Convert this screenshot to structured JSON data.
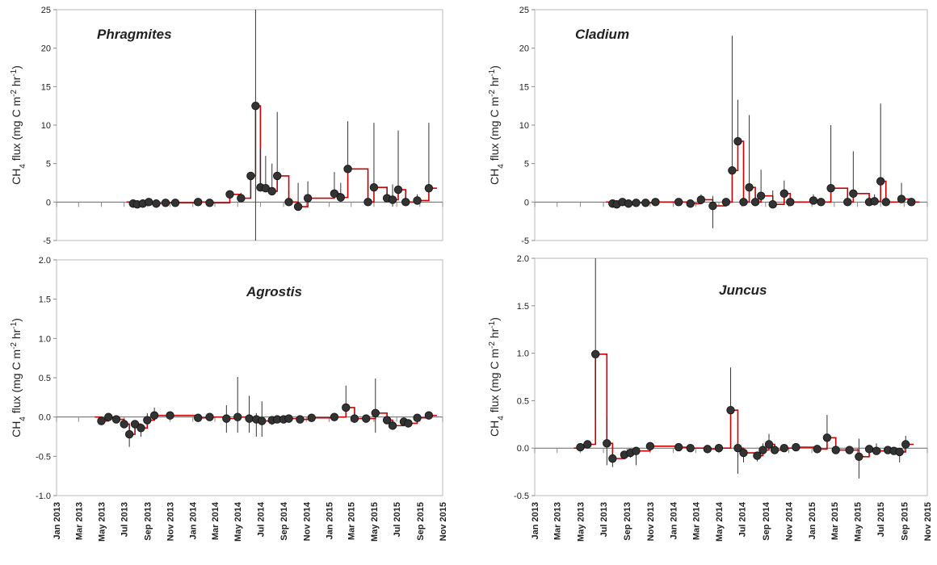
{
  "figure": {
    "x_axis_dates": [
      "Jan 2013",
      "Mar 2013",
      "May 2013",
      "Jul 2013",
      "Sep 2013",
      "Nov 2013",
      "Jan 2014",
      "Mar 2014",
      "May 2014",
      "Jul 2014",
      "Sep 2014",
      "Nov 2014",
      "Jan 2015",
      "Mar 2015",
      "May 2015",
      "Jul 2015",
      "Sep 2015",
      "Nov 2015"
    ]
  },
  "chart_data": [
    {
      "type": "line",
      "title": "Phragmites",
      "ylabel": "CH4 flux (mg C m-2 hr-1)",
      "ylabel_parts": {
        "a": "CH",
        "a_sub": "4",
        "b": " flux (mg C m",
        "b_sup": "-2",
        "c": " hr",
        "c_sup": "-1",
        "d": ")"
      },
      "ylim": [
        -5,
        25
      ],
      "yticks": [
        "-5",
        "0",
        "5",
        "10",
        "15",
        "20",
        "25"
      ],
      "ytick_values": [
        -5,
        0,
        5,
        10,
        15,
        20,
        25
      ],
      "x": [
        "2013-07-25",
        "2013-08-05",
        "2013-08-20",
        "2013-09-05",
        "2013-09-25",
        "2013-10-20",
        "2013-11-15",
        "2014-01-15",
        "2014-02-15",
        "2014-04-10",
        "2014-05-10",
        "2014-06-05",
        "2014-06-18",
        "2014-07-01",
        "2014-07-15",
        "2014-08-01",
        "2014-08-15",
        "2014-09-15",
        "2014-10-10",
        "2014-11-05",
        "2015-01-15",
        "2015-02-01",
        "2015-02-20",
        "2015-04-15",
        "2015-05-01",
        "2015-06-05",
        "2015-06-20",
        "2015-07-05",
        "2015-07-25",
        "2015-08-25",
        "2015-09-25"
      ],
      "y": [
        -0.2,
        -0.3,
        -0.2,
        0.0,
        -0.2,
        -0.1,
        -0.1,
        0.0,
        -0.1,
        1.0,
        0.5,
        3.4,
        12.5,
        1.9,
        1.8,
        1.4,
        3.4,
        0.0,
        -0.6,
        0.5,
        1.1,
        0.6,
        4.3,
        0.0,
        1.9,
        0.5,
        0.3,
        1.6,
        0.0,
        0.2,
        1.8
      ],
      "error_upper": [
        0,
        0,
        0,
        0,
        0,
        0,
        0,
        0,
        0.4,
        1.5,
        1.2,
        0.5,
        25,
        7,
        6,
        5,
        11.7,
        1.5,
        2.5,
        2.7,
        3.9,
        2.5,
        10.5,
        4,
        10.3,
        2,
        2.3,
        9.3,
        1,
        1,
        10.3
      ],
      "error_lower": [
        0,
        0,
        0,
        0,
        0,
        0,
        0,
        0,
        0,
        0,
        0.4,
        0,
        -5,
        0,
        0,
        0,
        0,
        0,
        -0.8,
        0,
        0,
        0,
        0,
        0,
        0,
        0,
        -0.6,
        0,
        0,
        0,
        0
      ],
      "model_line_color": "#cc0000",
      "marker_color": "#333333"
    },
    {
      "type": "line",
      "title": "Cladium",
      "ylabel": "CH4 flux (mg C m-2 hr-1)",
      "ylabel_parts": {
        "a": "CH",
        "a_sub": "4",
        "b": " flux (mg C m",
        "b_sup": "-2",
        "c": " hr",
        "c_sup": "-1",
        "d": ")"
      },
      "ylim": [
        -5,
        25
      ],
      "yticks": [
        "-5",
        "0",
        "5",
        "10",
        "15",
        "20",
        "25"
      ],
      "ytick_values": [
        -5,
        0,
        5,
        10,
        15,
        20,
        25
      ],
      "x": [
        "2013-07-25",
        "2013-08-05",
        "2013-08-20",
        "2013-09-05",
        "2013-09-25",
        "2013-10-20",
        "2013-11-15",
        "2014-01-15",
        "2014-02-15",
        "2014-03-15",
        "2014-04-15",
        "2014-05-20",
        "2014-06-05",
        "2014-06-20",
        "2014-07-05",
        "2014-07-20",
        "2014-08-05",
        "2014-08-20",
        "2014-09-20",
        "2014-10-20",
        "2014-11-05",
        "2015-01-05",
        "2015-01-25",
        "2015-02-20",
        "2015-04-05",
        "2015-04-20",
        "2015-06-01",
        "2015-06-15",
        "2015-07-01",
        "2015-07-15",
        "2015-08-25",
        "2015-09-20"
      ],
      "y": [
        -0.2,
        -0.3,
        0.0,
        -0.2,
        -0.1,
        -0.1,
        0.0,
        0.0,
        -0.2,
        0.3,
        -0.5,
        0.0,
        4.1,
        7.9,
        0.0,
        1.9,
        0.0,
        0.8,
        -0.3,
        1.1,
        0.0,
        0.2,
        0.0,
        1.8,
        0.0,
        1.1,
        0.0,
        0.1,
        2.7,
        0.0,
        0.4,
        0.0
      ],
      "error_upper": [
        0,
        0,
        0,
        0,
        0,
        0,
        0,
        0,
        0,
        1.0,
        0.8,
        0.5,
        21.6,
        13.3,
        0,
        11.3,
        1.0,
        4.2,
        1.5,
        2.8,
        0,
        1,
        0.5,
        10.0,
        1,
        6.6,
        0.5,
        1.0,
        12.8,
        0.5,
        2.5,
        0.5
      ],
      "error_lower": [
        0,
        0,
        0,
        0,
        0,
        0,
        0,
        0,
        0,
        0,
        -3.4,
        0,
        0,
        0,
        0,
        0,
        0,
        0,
        0,
        0,
        0,
        0,
        0,
        0,
        0,
        0,
        0,
        0,
        0,
        0,
        0,
        0
      ],
      "model_line_color": "#cc0000",
      "marker_color": "#333333"
    },
    {
      "type": "line",
      "title": "Agrostis",
      "ylabel": "CH4 flux (mg C m-2 hr-1)",
      "ylabel_parts": {
        "a": "CH",
        "a_sub": "4",
        "b": " flux (mg C m",
        "b_sup": "-2",
        "c": " hr",
        "c_sup": "-1",
        "d": ")"
      },
      "ylim": [
        -1.0,
        2.0
      ],
      "yticks": [
        "-1.0",
        "-0.5",
        "0.0",
        "0.5",
        "1.0",
        "1.5",
        "2.0"
      ],
      "ytick_values": [
        -1.0,
        -0.5,
        0.0,
        0.5,
        1.0,
        1.5,
        2.0
      ],
      "x": [
        "2013-05-01",
        "2013-05-20",
        "2013-06-10",
        "2013-07-01",
        "2013-07-15",
        "2013-07-30",
        "2013-08-15",
        "2013-09-01",
        "2013-09-20",
        "2013-11-01",
        "2014-01-15",
        "2014-02-15",
        "2014-04-01",
        "2014-05-01",
        "2014-06-01",
        "2014-06-20",
        "2014-07-05",
        "2014-08-01",
        "2014-08-15",
        "2014-09-01",
        "2014-09-15",
        "2014-10-15",
        "2014-11-15",
        "2015-01-15",
        "2015-02-15",
        "2015-03-10",
        "2015-04-10",
        "2015-05-05",
        "2015-06-05",
        "2015-06-20",
        "2015-07-20",
        "2015-08-01",
        "2015-08-25",
        "2015-09-25"
      ],
      "y": [
        -0.05,
        0.0,
        -0.03,
        -0.09,
        -0.22,
        -0.09,
        -0.14,
        -0.04,
        0.02,
        0.02,
        -0.01,
        0.0,
        -0.02,
        0.0,
        -0.02,
        -0.03,
        -0.05,
        -0.04,
        -0.03,
        -0.03,
        -0.02,
        -0.03,
        -0.01,
        0.0,
        0.12,
        -0.02,
        -0.02,
        0.05,
        -0.04,
        -0.11,
        -0.06,
        -0.08,
        -0.01,
        0.02
      ],
      "error_upper": [
        0,
        0,
        0,
        0,
        -0.1,
        0,
        0,
        0.05,
        0.12,
        0.05,
        0.02,
        0.03,
        0.15,
        0.51,
        0.27,
        0.05,
        0.2,
        0,
        0,
        0,
        0,
        0,
        0,
        0.05,
        0.4,
        0.05,
        0,
        0.49,
        0,
        -0.05,
        0,
        0,
        0,
        0.05
      ],
      "error_lower": [
        0,
        0,
        0,
        0,
        -0.38,
        -0.2,
        -0.25,
        0,
        0,
        0,
        -0.05,
        0,
        -0.2,
        -0.2,
        -0.2,
        -0.25,
        -0.25,
        -0.1,
        0,
        0,
        0,
        0,
        0,
        0,
        0,
        0,
        0,
        -0.2,
        0,
        -0.15,
        0,
        -0.12,
        0,
        0
      ],
      "model_line_color": "#cc0000",
      "marker_color": "#333333"
    },
    {
      "type": "line",
      "title": "Juncus",
      "ylabel": "CH4 flux (mg C m-2 hr-1)",
      "ylabel_parts": {
        "a": "CH",
        "a_sub": "4",
        "b": " flux (mg C m",
        "b_sup": "-2",
        "c": " hr",
        "c_sup": "-1",
        "d": ")"
      },
      "ylim": [
        -0.5,
        2.0
      ],
      "yticks": [
        "-0.5",
        "0.0",
        "0.5",
        "1.0",
        "1.5",
        "2.0"
      ],
      "ytick_values": [
        -0.5,
        0.0,
        0.5,
        1.0,
        1.5,
        2.0
      ],
      "x": [
        "2013-05-01",
        "2013-05-20",
        "2013-06-10",
        "2013-07-10",
        "2013-07-25",
        "2013-08-25",
        "2013-09-10",
        "2013-09-25",
        "2013-11-01",
        "2014-01-15",
        "2014-02-15",
        "2014-04-01",
        "2014-05-01",
        "2014-06-01",
        "2014-06-20",
        "2014-07-05",
        "2014-08-10",
        "2014-08-25",
        "2014-09-10",
        "2014-09-25",
        "2014-10-20",
        "2014-11-20",
        "2015-01-15",
        "2015-02-10",
        "2015-03-05",
        "2015-04-10",
        "2015-05-05",
        "2015-06-01",
        "2015-06-20",
        "2015-07-20",
        "2015-08-05",
        "2015-08-20",
        "2015-09-05"
      ],
      "y": [
        0.01,
        0.04,
        0.99,
        0.05,
        -0.11,
        -0.07,
        -0.05,
        -0.03,
        0.02,
        0.01,
        0.0,
        -0.01,
        0.0,
        0.4,
        0.0,
        -0.05,
        -0.08,
        -0.02,
        0.04,
        -0.02,
        0.0,
        0.01,
        -0.01,
        0.11,
        -0.02,
        -0.02,
        -0.09,
        -0.01,
        -0.03,
        -0.02,
        -0.03,
        -0.04,
        0.04
      ],
      "error_upper": [
        0.02,
        0.05,
        2.0,
        0.33,
        -0.05,
        0,
        0,
        0,
        0.03,
        0.02,
        0,
        0,
        0,
        0.85,
        0.01,
        0,
        0,
        0.05,
        0.15,
        0,
        0,
        0,
        0,
        0.35,
        0,
        0,
        0.1,
        0,
        0.05,
        0,
        0,
        0,
        0.13
      ],
      "error_lower": [
        0,
        0,
        0.3,
        -0.18,
        -0.2,
        -0.1,
        -0.1,
        -0.18,
        0,
        0,
        0,
        0,
        0,
        0,
        -0.27,
        -0.15,
        -0.14,
        -0.05,
        0,
        -0.05,
        0,
        0,
        0,
        0,
        0,
        0,
        -0.32,
        0,
        0,
        0,
        0,
        -0.15,
        0
      ],
      "model_line_color": "#cc0000",
      "marker_color": "#333333"
    }
  ]
}
